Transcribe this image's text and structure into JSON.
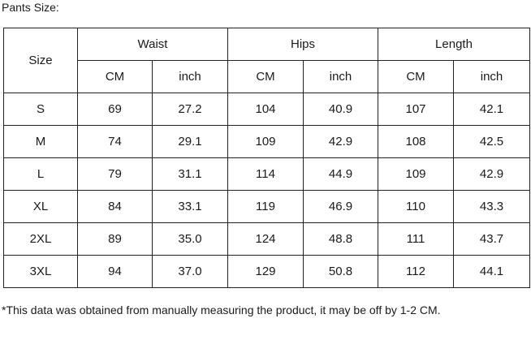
{
  "header": {
    "title": "Pants Size:"
  },
  "table": {
    "size_label": "Size",
    "groups": [
      {
        "label": "Waist",
        "units": [
          "CM",
          "inch"
        ]
      },
      {
        "label": "Hips",
        "units": [
          "CM",
          "inch"
        ]
      },
      {
        "label": "Length",
        "units": [
          "CM",
          "inch"
        ]
      }
    ],
    "rows": [
      [
        "S",
        "69",
        "27.2",
        "104",
        "40.9",
        "107",
        "42.1"
      ],
      [
        "M",
        "74",
        "29.1",
        "109",
        "42.9",
        "108",
        "42.5"
      ],
      [
        "L",
        "79",
        "31.1",
        "114",
        "44.9",
        "109",
        "42.9"
      ],
      [
        "XL",
        "84",
        "33.1",
        "119",
        "46.9",
        "110",
        "43.3"
      ],
      [
        "2XL",
        "89",
        "35.0",
        "124",
        "48.8",
        "111",
        "43.7"
      ],
      [
        "3XL",
        "94",
        "37.0",
        "129",
        "50.8",
        "112",
        "44.1"
      ]
    ]
  },
  "footnote": "*This data was obtained from manually measuring the product, it may be off by 1-2 CM."
}
